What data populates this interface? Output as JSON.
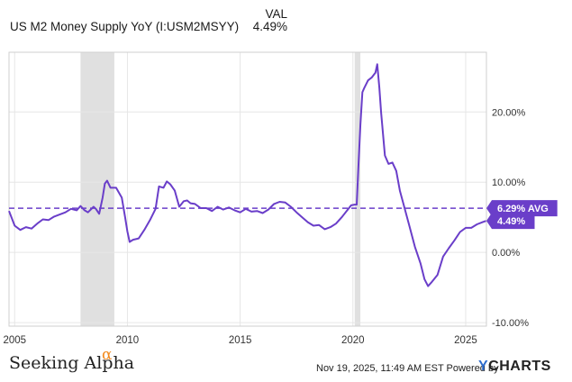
{
  "header": {
    "series_label": "US M2 Money Supply YoY (I:USM2MSYY)",
    "column_header": "VAL",
    "current_value": "4.49%"
  },
  "footer": {
    "brand_left": "Seeking Alpha",
    "brand_left_mark": "α",
    "timestamp": "Nov 19, 2025, 11:49 AM EST Powered by",
    "brand_right": "CHARTS",
    "brand_right_mark": "Y"
  },
  "colors": {
    "line": "#6a3ec9",
    "recession": "#e0e0e0",
    "grid": "#e6e6e6",
    "tick_text": "#333333",
    "brand_alpha": "#f28a1e",
    "ycharts_y": "#2f6dcc"
  },
  "chart_data": {
    "type": "line",
    "title": "US M2 Money Supply YoY (I:USM2MSYY)",
    "xlabel": "",
    "ylabel": "",
    "xlim": [
      2004.75,
      2025.92
    ],
    "ylim": [
      -10.5,
      28.5
    ],
    "x_ticks": [
      {
        "value": 2005,
        "label": "2005"
      },
      {
        "value": 2010,
        "label": "2010"
      },
      {
        "value": 2015,
        "label": "2015"
      },
      {
        "value": 2020,
        "label": "2020"
      },
      {
        "value": 2025,
        "label": "2025"
      }
    ],
    "y_ticks": [
      {
        "value": 20,
        "label": "20.00%"
      },
      {
        "value": 10,
        "label": "10.00%"
      },
      {
        "value": 0,
        "label": "0.00%"
      },
      {
        "value": -10,
        "label": "-10.00%"
      }
    ],
    "recessions": [
      {
        "start": 2007.92,
        "end": 2009.42
      },
      {
        "start": 2020.08,
        "end": 2020.33
      }
    ],
    "average": {
      "value": 6.29,
      "label": "6.29% AVG"
    },
    "last_value": {
      "value": 4.49,
      "label": "4.49%"
    },
    "series": [
      {
        "name": "US M2 Money Supply YoY",
        "x": [
          2004.75,
          2005.0,
          2005.25,
          2005.5,
          2005.75,
          2006.0,
          2006.25,
          2006.5,
          2006.75,
          2007.0,
          2007.25,
          2007.5,
          2007.75,
          2007.92,
          2008.1,
          2008.25,
          2008.5,
          2008.6,
          2008.75,
          2008.9,
          2009.0,
          2009.1,
          2009.25,
          2009.5,
          2009.75,
          2009.9,
          2010.0,
          2010.1,
          2010.25,
          2010.5,
          2010.75,
          2011.0,
          2011.25,
          2011.4,
          2011.6,
          2011.75,
          2011.9,
          2012.1,
          2012.3,
          2012.5,
          2012.65,
          2012.8,
          2013.0,
          2013.25,
          2013.5,
          2013.75,
          2014.0,
          2014.25,
          2014.5,
          2014.75,
          2015.0,
          2015.25,
          2015.5,
          2015.75,
          2016.0,
          2016.25,
          2016.5,
          2016.75,
          2017.0,
          2017.25,
          2017.5,
          2017.75,
          2018.0,
          2018.25,
          2018.5,
          2018.75,
          2019.0,
          2019.25,
          2019.5,
          2019.75,
          2019.92,
          2020.08,
          2020.17,
          2020.25,
          2020.33,
          2020.42,
          2020.5,
          2020.67,
          2020.83,
          2021.0,
          2021.08,
          2021.17,
          2021.25,
          2021.42,
          2021.58,
          2021.75,
          2021.92,
          2022.08,
          2022.25,
          2022.5,
          2022.75,
          2023.0,
          2023.17,
          2023.33,
          2023.5,
          2023.75,
          2024.0,
          2024.25,
          2024.5,
          2024.75,
          2025.0,
          2025.25,
          2025.5,
          2025.75,
          2025.9
        ],
        "values": [
          5.9,
          3.8,
          3.2,
          3.6,
          3.4,
          4.1,
          4.7,
          4.6,
          5.1,
          5.4,
          5.7,
          6.2,
          6.0,
          6.6,
          6.0,
          5.7,
          6.5,
          6.2,
          5.5,
          7.8,
          9.8,
          10.2,
          9.2,
          9.2,
          7.8,
          5.0,
          3.0,
          1.5,
          1.8,
          2.0,
          3.2,
          4.6,
          6.2,
          9.4,
          9.2,
          10.1,
          9.7,
          8.8,
          6.5,
          7.3,
          7.4,
          7.0,
          6.9,
          6.3,
          6.3,
          5.9,
          6.5,
          6.1,
          6.4,
          6.0,
          5.7,
          6.2,
          5.8,
          5.9,
          5.6,
          6.1,
          6.9,
          7.2,
          7.1,
          6.5,
          5.7,
          5.0,
          4.3,
          3.8,
          3.9,
          3.3,
          3.6,
          4.1,
          5.0,
          6.0,
          6.7,
          6.8,
          6.8,
          12.5,
          18.2,
          22.8,
          23.4,
          24.5,
          24.9,
          25.6,
          26.8,
          23.5,
          19.9,
          13.8,
          12.6,
          12.8,
          11.6,
          8.8,
          6.8,
          3.8,
          0.8,
          -1.6,
          -3.8,
          -4.8,
          -4.2,
          -3.2,
          -0.6,
          0.6,
          1.7,
          2.9,
          3.5,
          3.5,
          4.0,
          4.3,
          4.49
        ]
      }
    ]
  }
}
